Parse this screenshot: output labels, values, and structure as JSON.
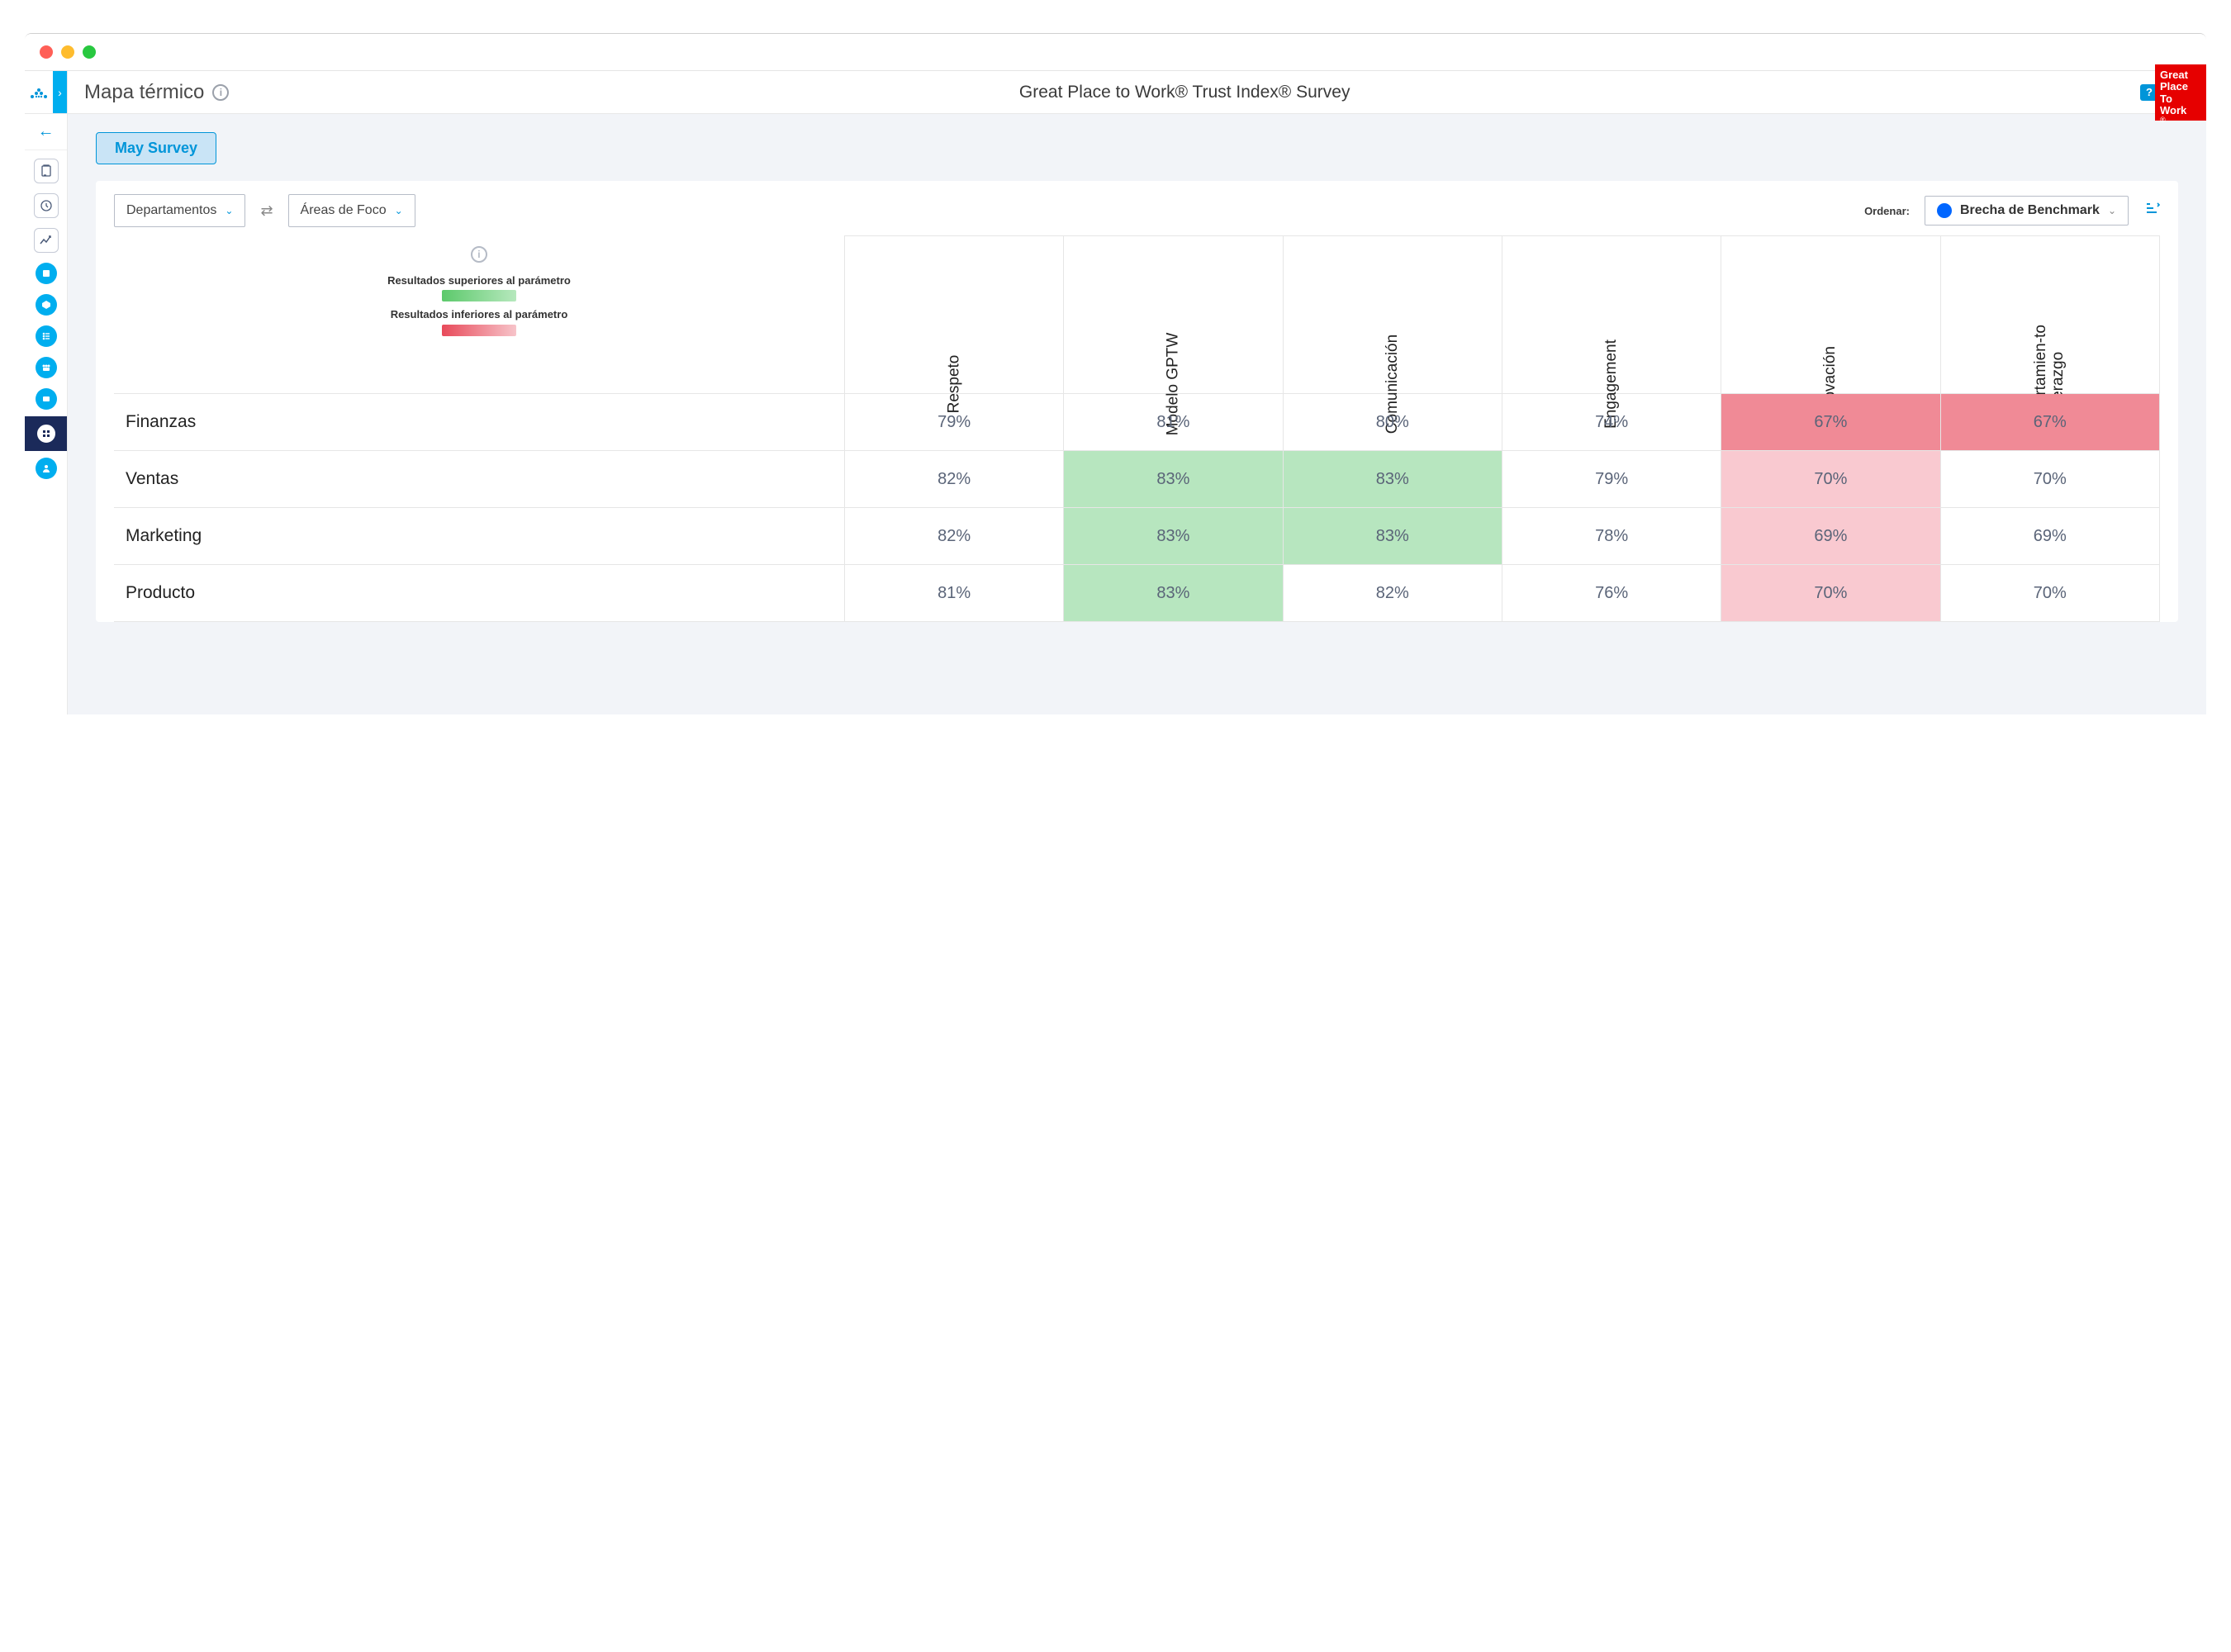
{
  "header": {
    "page_title": "Mapa térmico",
    "survey_title": "Great Place to Work® Trust Index® Survey",
    "gptw_badge": {
      "l1": "Great",
      "l2": "Place",
      "l3": "To",
      "l4": "Work",
      "sub": "®"
    }
  },
  "survey_pill": "May Survey",
  "controls": {
    "rows_select": "Departamentos",
    "cols_select": "Áreas de Foco",
    "ordenar_label": "Ordenar:",
    "sort_select": "Brecha de Benchmark"
  },
  "legend": {
    "above": "Resultados superiores al parámetro",
    "below": "Resultados inferiores al parámetro"
  },
  "columns": [
    {
      "label": "Respeto"
    },
    {
      "label": "Modelo GPTW"
    },
    {
      "label": "Comunicación"
    },
    {
      "label": "Engagement"
    },
    {
      "label": "Innovación"
    },
    {
      "label": "Comportamien-to del Liderazgo",
      "multi": true
    }
  ],
  "rows": [
    {
      "label": "Finanzas",
      "cells": [
        {
          "v": "79%",
          "c": ""
        },
        {
          "v": "81%",
          "c": ""
        },
        {
          "v": "80%",
          "c": ""
        },
        {
          "v": "74%",
          "c": ""
        },
        {
          "v": "67%",
          "c": "red-strong"
        },
        {
          "v": "67%",
          "c": "red-strong"
        }
      ]
    },
    {
      "label": "Ventas",
      "cells": [
        {
          "v": "82%",
          "c": ""
        },
        {
          "v": "83%",
          "c": "green"
        },
        {
          "v": "83%",
          "c": "green"
        },
        {
          "v": "79%",
          "c": ""
        },
        {
          "v": "70%",
          "c": "red-light"
        },
        {
          "v": "70%",
          "c": ""
        }
      ]
    },
    {
      "label": "Marketing",
      "cells": [
        {
          "v": "82%",
          "c": ""
        },
        {
          "v": "83%",
          "c": "green"
        },
        {
          "v": "83%",
          "c": "green"
        },
        {
          "v": "78%",
          "c": ""
        },
        {
          "v": "69%",
          "c": "red-light"
        },
        {
          "v": "69%",
          "c": ""
        }
      ]
    },
    {
      "label": "Producto",
      "cells": [
        {
          "v": "81%",
          "c": ""
        },
        {
          "v": "83%",
          "c": "green"
        },
        {
          "v": "82%",
          "c": ""
        },
        {
          "v": "76%",
          "c": ""
        },
        {
          "v": "70%",
          "c": "red-light"
        },
        {
          "v": "70%",
          "c": ""
        }
      ]
    }
  ],
  "colors": {
    "green": "#b7e6bf",
    "red_strong": "#f08a96",
    "red_light": "#f9c9d0",
    "accent": "#00aeef",
    "brand_red": "#e60000"
  }
}
